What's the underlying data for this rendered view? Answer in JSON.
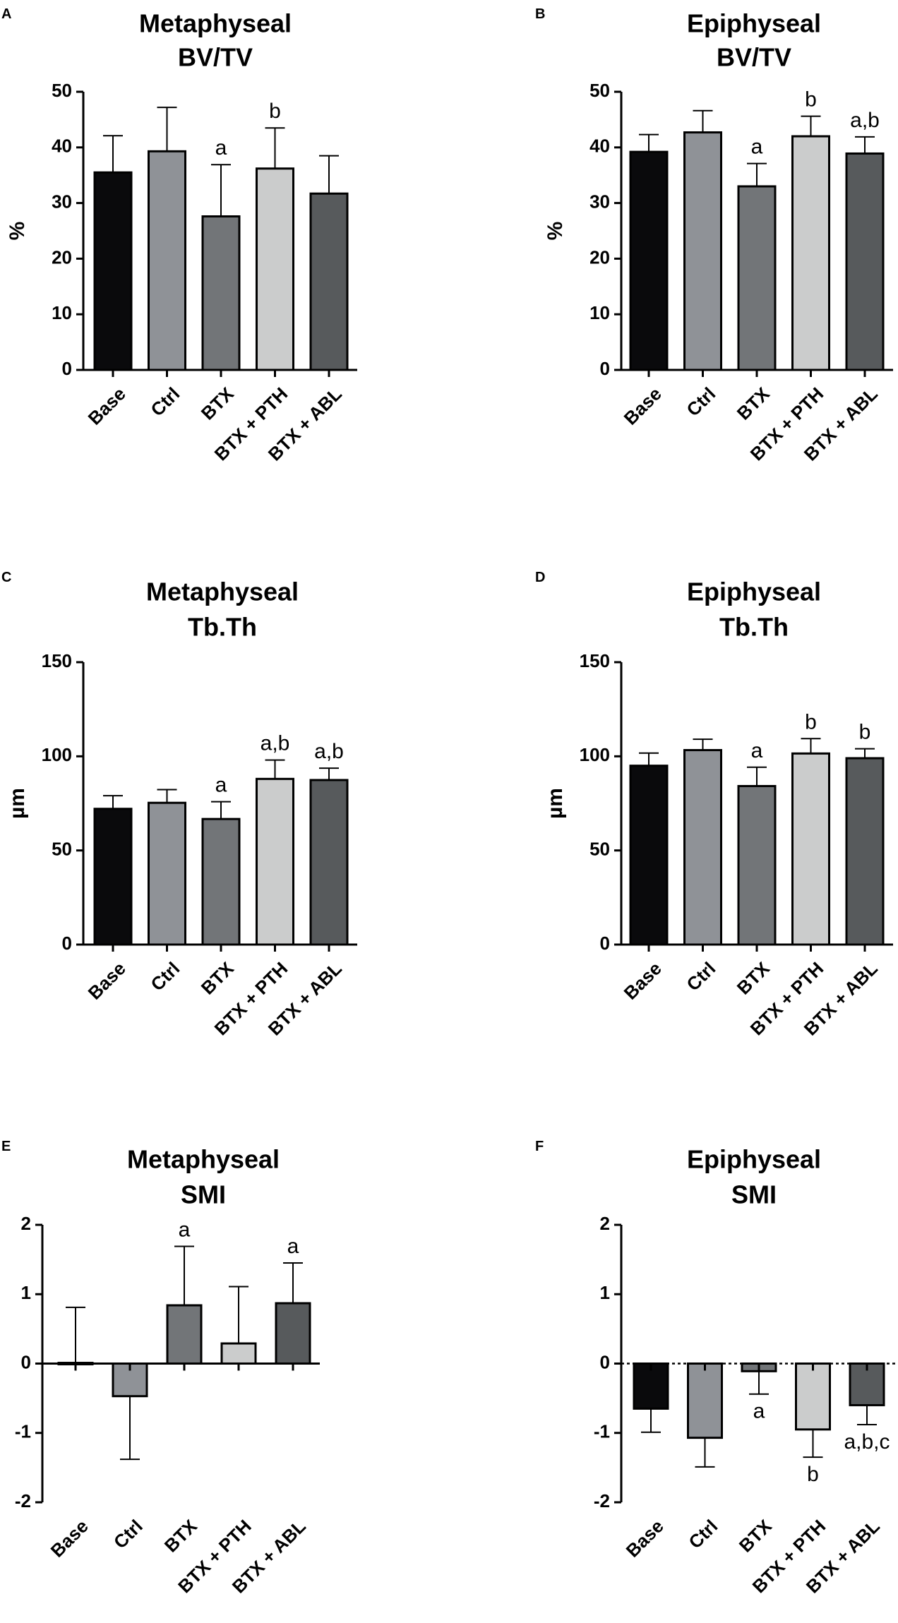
{
  "categories": [
    "Base",
    "Ctrl",
    "BTX",
    "BTX + PTH",
    "BTX + ABL"
  ],
  "bar_colors": [
    "#0a0a0c",
    "#8f9297",
    "#727578",
    "#cbcccc",
    "#575a5c"
  ],
  "chart_data": [
    {
      "type": "bar",
      "panel": "A",
      "title": [
        "Metaphyseal",
        "BV/TV"
      ],
      "ylabel": "%",
      "ylim": [
        0,
        50
      ],
      "yticks": [
        0,
        10,
        20,
        30,
        40,
        50
      ],
      "values": [
        35.5,
        39.3,
        27.6,
        36.2,
        31.7
      ],
      "errors": [
        6.6,
        7.9,
        9.3,
        7.3,
        6.8
      ],
      "annotations": [
        "",
        "",
        "a",
        "b",
        ""
      ],
      "annotation_pos": [
        "above",
        "above",
        "above",
        "above",
        "above"
      ]
    },
    {
      "type": "bar",
      "panel": "B",
      "title": [
        "Epiphyseal",
        "BV/TV"
      ],
      "ylabel": "%",
      "ylim": [
        0,
        50
      ],
      "yticks": [
        0,
        10,
        20,
        30,
        40,
        50
      ],
      "values": [
        39.2,
        42.7,
        33.0,
        42.0,
        38.9
      ],
      "errors": [
        3.1,
        3.9,
        4.1,
        3.6,
        3.0
      ],
      "annotations": [
        "",
        "",
        "a",
        "b",
        "a,b"
      ],
      "annotation_pos": [
        "above",
        "above",
        "above",
        "above",
        "above"
      ]
    },
    {
      "type": "bar",
      "panel": "C",
      "title": [
        "Metaphyseal",
        "Tb.Th"
      ],
      "ylabel": "µm",
      "ylim": [
        0,
        150
      ],
      "yticks": [
        0,
        50,
        100,
        150
      ],
      "values": [
        72.1,
        75.3,
        66.7,
        88.0,
        87.4
      ],
      "errors": [
        7.0,
        7.0,
        9.2,
        10.0,
        6.3
      ],
      "annotations": [
        "",
        "",
        "a",
        "a,b",
        "a,b"
      ],
      "annotation_pos": [
        "above",
        "above",
        "above",
        "above",
        "above"
      ]
    },
    {
      "type": "bar",
      "panel": "D",
      "title": [
        "Epiphyseal",
        "Tb.Th"
      ],
      "ylabel": "µm",
      "ylim": [
        0,
        150
      ],
      "yticks": [
        0,
        50,
        100,
        150
      ],
      "values": [
        95.0,
        103.3,
        84.2,
        101.5,
        99.0
      ],
      "errors": [
        6.7,
        5.8,
        10.0,
        7.9,
        5.0
      ],
      "annotations": [
        "",
        "",
        "a",
        "b",
        "b"
      ],
      "annotation_pos": [
        "above",
        "above",
        "above",
        "above",
        "above"
      ]
    },
    {
      "type": "bar",
      "panel": "E",
      "title": [
        "Metaphyseal",
        "SMI"
      ],
      "ylabel": "",
      "ylim": [
        -2,
        2
      ],
      "yticks": [
        -2,
        -1,
        0,
        1,
        2
      ],
      "values": [
        0.01,
        -0.47,
        0.84,
        0.29,
        0.87
      ],
      "errors": [
        0.8,
        0.91,
        0.85,
        0.82,
        0.58
      ],
      "annotations": [
        "",
        "",
        "a",
        "",
        "a"
      ],
      "annotation_pos": [
        "above",
        "above",
        "above",
        "above",
        "above"
      ]
    },
    {
      "type": "bar",
      "panel": "F",
      "title": [
        "Epiphyseal",
        "SMI"
      ],
      "ylabel": "",
      "ylim": [
        -2,
        2
      ],
      "yticks": [
        -2,
        -1,
        0,
        1,
        2
      ],
      "values": [
        -0.65,
        -1.07,
        -0.11,
        -0.95,
        -0.6
      ],
      "errors": [
        0.34,
        0.42,
        0.33,
        0.4,
        0.28
      ],
      "annotations": [
        "",
        "",
        "a",
        "b",
        "a,b,c"
      ],
      "annotation_pos": [
        "below",
        "below",
        "below",
        "below",
        "below"
      ]
    }
  ]
}
